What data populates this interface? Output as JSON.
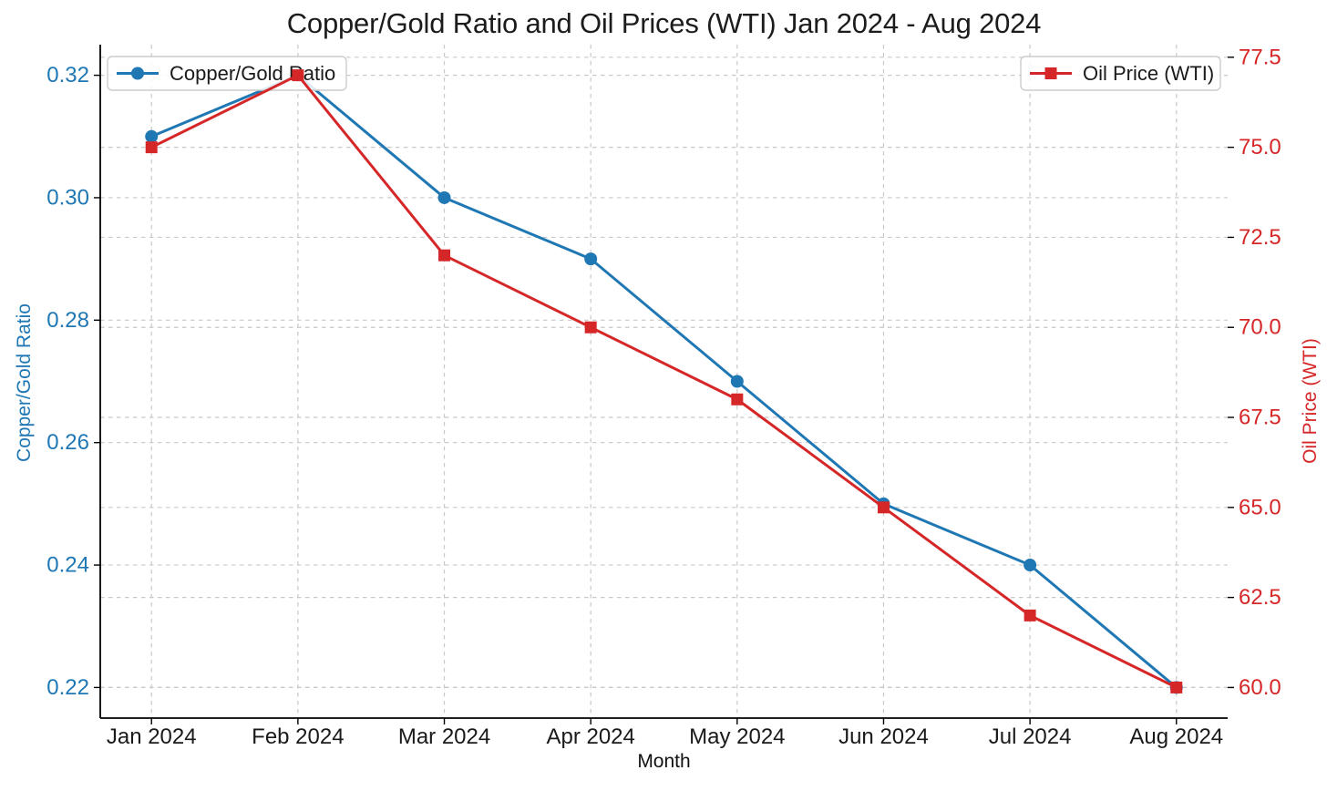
{
  "chart_data": {
    "type": "line",
    "title": "Copper/Gold Ratio and Oil Prices (WTI) Jan 2024 - Aug 2024",
    "xlabel": "Month",
    "categories": [
      "Jan 2024",
      "Feb 2024",
      "Mar 2024",
      "Apr 2024",
      "May 2024",
      "Jun 2024",
      "Jul 2024",
      "Aug 2024"
    ],
    "series": [
      {
        "name": "Copper/Gold Ratio",
        "axis": "left",
        "color": "#1f77b4",
        "marker": "circle",
        "values": [
          0.31,
          0.32,
          0.3,
          0.29,
          0.27,
          0.25,
          0.24,
          0.22
        ]
      },
      {
        "name": "Oil Price (WTI)",
        "axis": "right",
        "color": "#d62728",
        "marker": "square",
        "values": [
          75.0,
          77.0,
          72.0,
          70.0,
          68.0,
          65.0,
          62.0,
          60.0
        ]
      }
    ],
    "left_axis": {
      "label": "Copper/Gold Ratio",
      "color": "#1f77b4",
      "tick_labels": [
        "0.32",
        "0.30",
        "0.28",
        "0.26",
        "0.24",
        "0.22"
      ],
      "ticks": [
        0.32,
        0.3,
        0.28,
        0.26,
        0.24,
        0.22
      ],
      "lim": [
        0.215,
        0.325
      ]
    },
    "right_axis": {
      "label": "Oil Price (WTI)",
      "color": "#d62728",
      "tick_labels": [
        "77.5",
        "75.0",
        "72.5",
        "70.0",
        "67.5",
        "65.0",
        "62.5",
        "60.0"
      ],
      "ticks": [
        77.5,
        75.0,
        72.5,
        70.0,
        67.5,
        65.0,
        62.5,
        60.0
      ],
      "lim": [
        59.15,
        77.85
      ]
    },
    "x_axis": {
      "tick_color": "#1a1a1a",
      "lim": [
        -0.35,
        7.35
      ]
    },
    "grid": {
      "on": true,
      "style": "dashed",
      "color": "#c8c8c8"
    },
    "legend_position": [
      "upper left",
      "upper right"
    ],
    "spine_color": "#000000",
    "background": "#ffffff"
  }
}
